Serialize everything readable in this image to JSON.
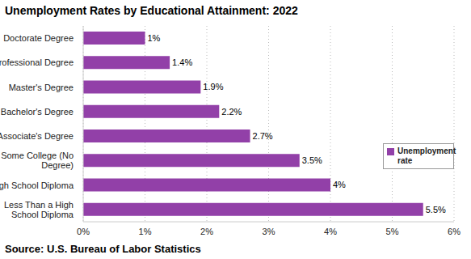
{
  "chart_data": {
    "type": "bar",
    "title": "Unemployment Rates by Educational Attainment: 2022",
    "source": "Source: U.S. Bureau of Labor Statistics",
    "orientation": "horizontal",
    "categories": [
      "Doctorate Degree",
      "Professional Degree",
      "Master's Degree",
      "Bachelor's Degree",
      "Associate's Degree",
      "Some College (No Degree)",
      "High School Diploma",
      "Less Than a High School Diploma"
    ],
    "series": [
      {
        "name": "Unemployment rate",
        "color": "#9240a8",
        "values": [
          1,
          1.4,
          1.9,
          2.2,
          2.7,
          3.5,
          4,
          5.5
        ],
        "value_labels": [
          "1%",
          "1.4%",
          "1.9%",
          "2.2%",
          "2.7%",
          "3.5%",
          "4%",
          "5.5%"
        ]
      }
    ],
    "xlim": [
      0,
      6
    ],
    "xticks": [
      {
        "value": 0,
        "label": "0%"
      },
      {
        "value": 1,
        "label": "1%"
      },
      {
        "value": 2,
        "label": "2%"
      },
      {
        "value": 3,
        "label": "3%"
      },
      {
        "value": 4,
        "label": "4%"
      },
      {
        "value": 5,
        "label": "5%"
      },
      {
        "value": 6,
        "label": "6%"
      }
    ],
    "grid": true,
    "legend": "right",
    "data_labels": true
  }
}
